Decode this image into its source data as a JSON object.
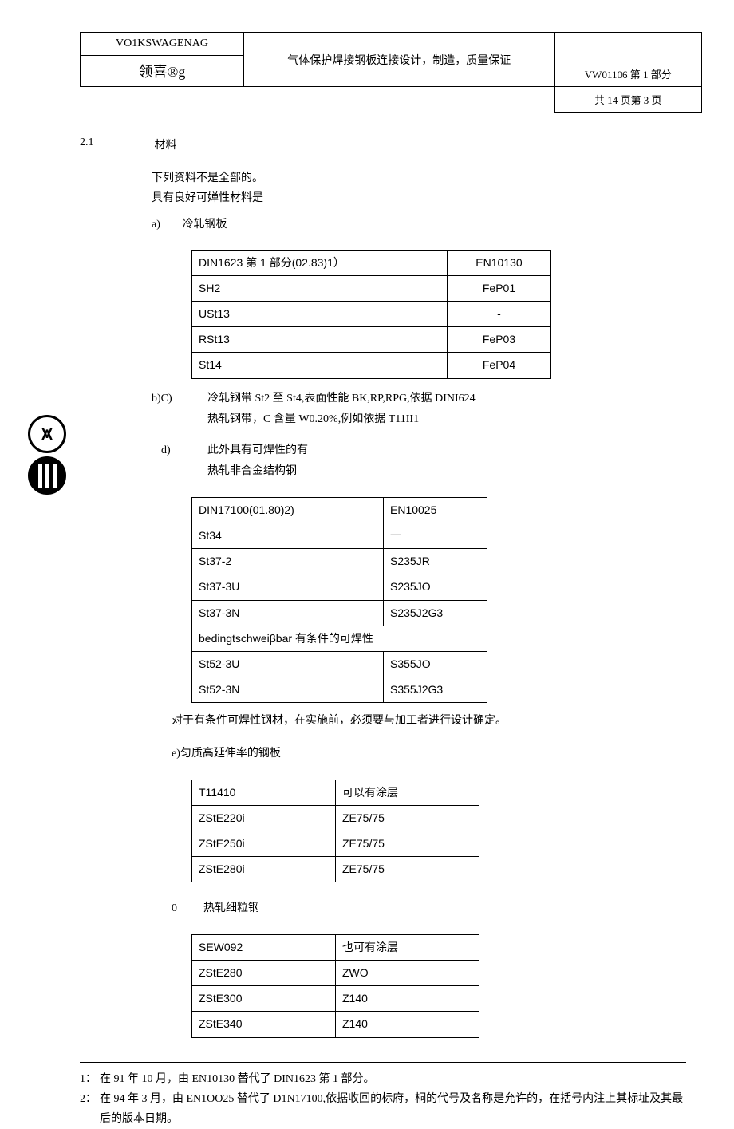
{
  "header": {
    "company": "VO1KSWAGENAG",
    "doc_title": "气体保护焊接钢板连接设计，制造，质量保证",
    "brand": "领喜®g",
    "doc_num": "VW01106 第 1 部分",
    "page_info": "共 14 页第 3 页"
  },
  "section": {
    "num": "2.1",
    "title": "材料",
    "intro1": "下列资料不是全部的。",
    "intro2": "具有良好可婵性材料是",
    "item_a_label": "a)",
    "item_a_text": "冷轧钢板"
  },
  "table1": {
    "rows": [
      [
        "DIN1623 第 1 部分(02.83)1）",
        "EN10130"
      ],
      [
        "SH2",
        "FeP01"
      ],
      [
        "USt13",
        "-"
      ],
      [
        "RSt13",
        "FeP03"
      ],
      [
        "St14",
        "FeP04"
      ]
    ]
  },
  "item_bc": {
    "label": "b)C)",
    "line1": "冷轧钢带 St2 至 St4,表面性能 BK,RP,RPG,依据 DINI624",
    "line2": "热轧钢带，C 含量 W0.20%,例如依据 T11II1"
  },
  "item_d": {
    "label": "d)",
    "line1": "此外具有可焊性的有",
    "line2": "热轧非合金结构钢"
  },
  "table2": {
    "rows": [
      [
        "DIN17100(01.80)2)",
        "EN10025"
      ],
      [
        "St34",
        "一"
      ],
      [
        "St37-2",
        "S235JR"
      ],
      [
        "St37-3U",
        "S235JO"
      ],
      [
        "St37-3N",
        "S235J2G3"
      ]
    ],
    "span_row": "bedingtschweiβbar 有条件的可焊性",
    "rows2": [
      [
        "St52-3U",
        "S355JO"
      ],
      [
        "St52-3N",
        "S355J2G3"
      ]
    ]
  },
  "note_after_t2": "对于有条件可焊性钢材，在实施前，必须要与加工者进行设计确定。",
  "item_e": {
    "label": "e)匀质高延伸率的钢板"
  },
  "table3": {
    "rows": [
      [
        "T11410",
        "可以有涂层"
      ],
      [
        "ZStE220i",
        "ZE75/75"
      ],
      [
        "ZStE250i",
        "ZE75/75"
      ],
      [
        "ZStE280i",
        "ZE75/75"
      ]
    ]
  },
  "item_0": {
    "label": "0",
    "text": "热轧细粒钢"
  },
  "table4": {
    "rows": [
      [
        "SEW092",
        "也可有涂层"
      ],
      [
        "ZStE280",
        "ZWO"
      ],
      [
        "ZStE300",
        "Z140"
      ],
      [
        "ZStE340",
        "Z140"
      ]
    ]
  },
  "footnotes": {
    "fn1_num": "1：",
    "fn1_text": "在 91 年 10 月，由 EN10130 替代了 DIN1623 第 1 部分。",
    "fn2_num": "2：",
    "fn2_text": "在 94 年 3 月，由 EN1OO25 替代了 D1N17100,依据收回的标府，桐的代号及名称是允许的，在括号内注上其标址及其最后的版本日期。"
  }
}
